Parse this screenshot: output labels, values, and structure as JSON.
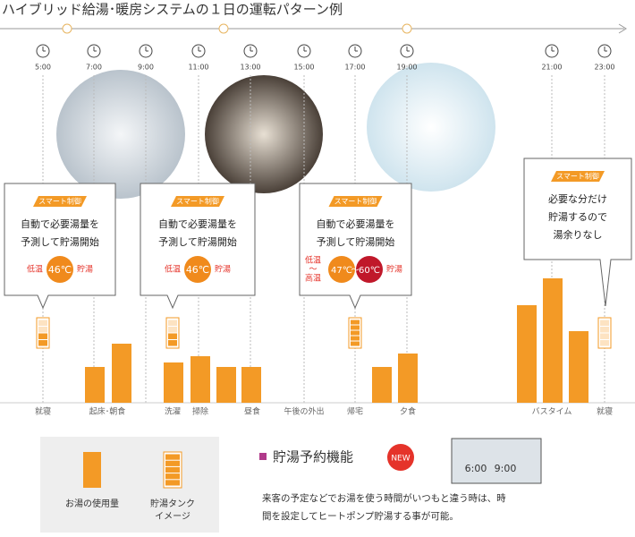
{
  "header": {
    "title": "ハイブリッド給湯･暖房システムの１日の運転パターン例"
  },
  "times": [
    "5:00",
    "7:00",
    "9:00",
    "11:00",
    "13:00",
    "15:00",
    "17:00",
    "19:00",
    "21:00",
    "23:00"
  ],
  "callouts": [
    {
      "badge": "スマート制御",
      "lines": [
        "自動で必要湯量を",
        "予測して貯湯開始"
      ],
      "low": "低温",
      "temp": "46℃",
      "store": "貯湯"
    },
    {
      "badge": "スマート制御",
      "lines": [
        "自動で必要湯量を",
        "予測して貯湯開始"
      ],
      "low": "低温",
      "temp": "46℃",
      "store": "貯湯"
    },
    {
      "badge": "スマート制御",
      "lines": [
        "自動で必要湯量を",
        "予測して貯湯開始"
      ],
      "low": "低温",
      "tilde": "〜",
      "high": "高温",
      "temp": "47℃",
      "temp_tilde": "〜",
      "temp2": "60℃",
      "store": "貯湯"
    },
    {
      "badge": "スマート制御",
      "lines": [
        "必要な分だけ",
        "貯湯するので",
        "湯余りなし"
      ]
    }
  ],
  "activities": [
    "就寝",
    "起床･朝食",
    "洗濯",
    "掃除",
    "昼食",
    "午後の外出",
    "帰宅",
    "夕食",
    "バスタイム",
    "就寝"
  ],
  "legend": {
    "usage": "お湯の使用量",
    "tank": [
      "貯湯タンク",
      "イメージ"
    ]
  },
  "feature": {
    "title": "貯湯予約機能",
    "badge": "NEW",
    "description": [
      "来客の予定などでお湯を使う時間がいつもと違う時は、時",
      "間を設定してヒートポンプ貯湯する事が可能。"
    ],
    "device_times": [
      "6:00",
      "9:00"
    ]
  }
}
